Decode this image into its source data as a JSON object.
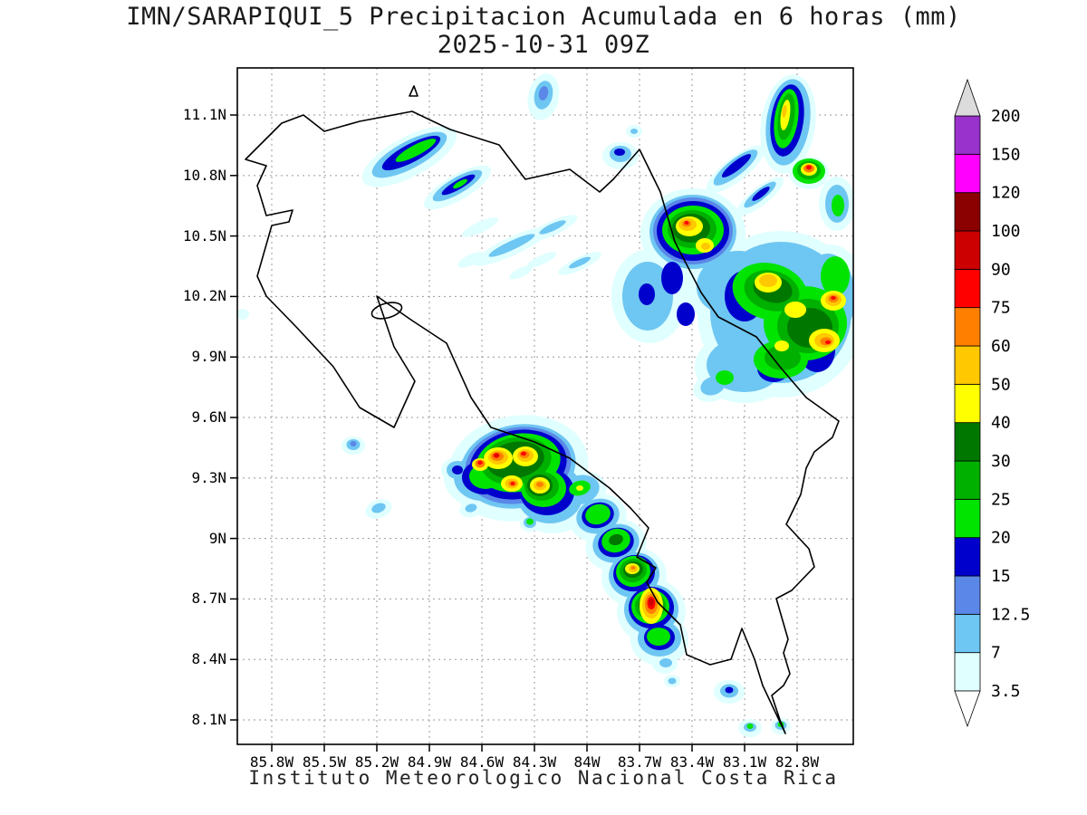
{
  "title": {
    "line1": "IMN/SARAPIQUI_5 Precipitacion Acumulada en 6 horas (mm)",
    "line2": "2025-10-31 09Z"
  },
  "footer": {
    "text": "Instituto Meteorologico Nacional Costa Rica"
  },
  "axes": {
    "lat_ticks": [
      {
        "label": "11.1N",
        "value": 11.1
      },
      {
        "label": "10.8N",
        "value": 10.8
      },
      {
        "label": "10.5N",
        "value": 10.5
      },
      {
        "label": "10.2N",
        "value": 10.2
      },
      {
        "label": "9.9N",
        "value": 9.9
      },
      {
        "label": "9.6N",
        "value": 9.6
      },
      {
        "label": "9.3N",
        "value": 9.3
      },
      {
        "label": "9N",
        "value": 9.0
      },
      {
        "label": "8.7N",
        "value": 8.7
      },
      {
        "label": "8.4N",
        "value": 8.4
      },
      {
        "label": "8.1N",
        "value": 8.1
      }
    ],
    "lon_ticks": [
      {
        "label": "85.8W",
        "value": 85.8
      },
      {
        "label": "85.5W",
        "value": 85.5
      },
      {
        "label": "85.2W",
        "value": 85.2
      },
      {
        "label": "84.9W",
        "value": 84.9
      },
      {
        "label": "84.6W",
        "value": 84.6
      },
      {
        "label": "84.3W",
        "value": 84.3
      },
      {
        "label": "84W",
        "value": 84.0
      },
      {
        "label": "83.7W",
        "value": 83.7
      },
      {
        "label": "83.4W",
        "value": 83.4
      },
      {
        "label": "83.1W",
        "value": 83.1
      },
      {
        "label": "82.8W",
        "value": 82.8
      }
    ]
  },
  "colorbar": {
    "unit": "mm",
    "levels": [
      "3.5",
      "7",
      "12.5",
      "15",
      "20",
      "25",
      "30",
      "40",
      "50",
      "60",
      "75",
      "90",
      "100",
      "120",
      "150",
      "200"
    ],
    "segment_colors": [
      "#E0FFFF",
      "#6EC6F2",
      "#5A87E8",
      "#0000CD",
      "#00E400",
      "#00B000",
      "#007800",
      "#FFFF00",
      "#FFC800",
      "#FF8000",
      "#FF0000",
      "#CC0000",
      "#8B0000",
      "#FF00FF",
      "#9932CC"
    ],
    "above_max_color": "#DCDCDC",
    "below_min_color": "#FFFFFF"
  }
}
